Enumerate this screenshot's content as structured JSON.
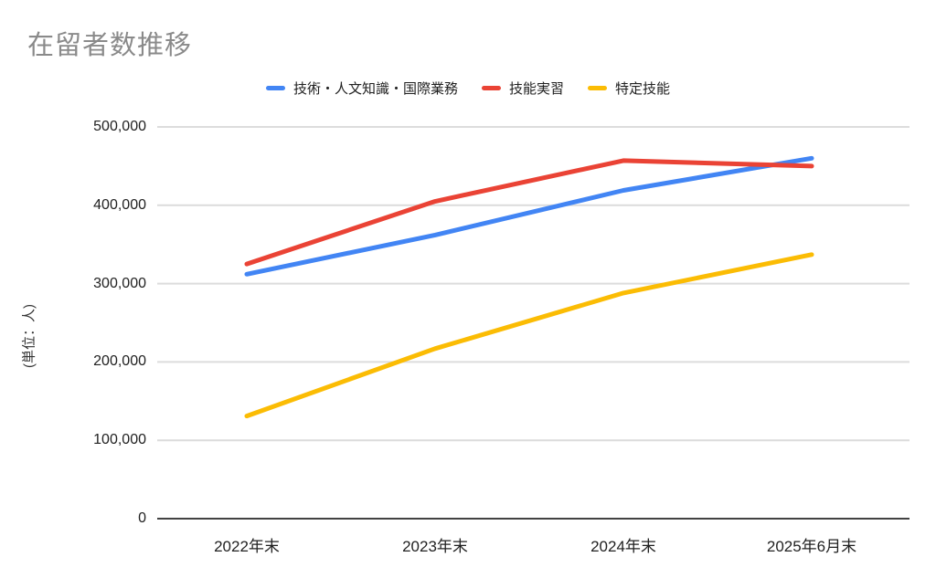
{
  "page": {
    "background_color": "#ffffff"
  },
  "chart_data": {
    "type": "line",
    "title": "在留者数推移",
    "title_color": "#8a8a8a",
    "ylabel": "(単位：人)",
    "categories": [
      "2022年末",
      "2023年末",
      "2024年末",
      "2025年6月末"
    ],
    "series": [
      {
        "name": "技術・人文知識・国際業務",
        "color": "#4285F4",
        "values": [
          312000,
          362000,
          419000,
          460000
        ]
      },
      {
        "name": "技能実習",
        "color": "#EA4335",
        "values": [
          325000,
          405000,
          457000,
          450000
        ]
      },
      {
        "name": "特定技能",
        "color": "#FBBC04",
        "values": [
          131000,
          217000,
          288000,
          337000
        ]
      }
    ],
    "ylim": [
      0,
      500000
    ],
    "y_ticks": [
      0,
      100000,
      200000,
      300000,
      400000,
      500000
    ],
    "y_tick_labels": [
      "0",
      "100,000",
      "200,000",
      "300,000",
      "400,000",
      "500,000"
    ],
    "grid": true,
    "grid_color": "#dcdcdc",
    "axis_color": "#424242",
    "legend_position": "top"
  }
}
